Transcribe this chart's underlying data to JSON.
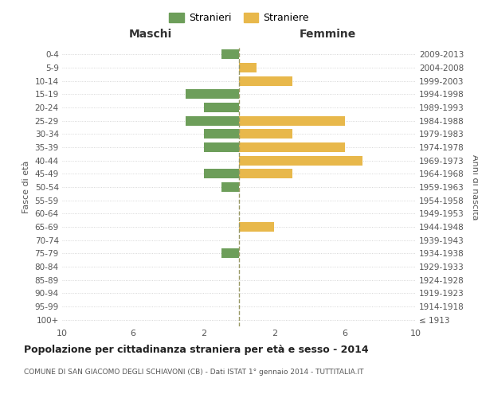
{
  "age_groups": [
    "100+",
    "95-99",
    "90-94",
    "85-89",
    "80-84",
    "75-79",
    "70-74",
    "65-69",
    "60-64",
    "55-59",
    "50-54",
    "45-49",
    "40-44",
    "35-39",
    "30-34",
    "25-29",
    "20-24",
    "15-19",
    "10-14",
    "5-9",
    "0-4"
  ],
  "birth_years": [
    "≤ 1913",
    "1914-1918",
    "1919-1923",
    "1924-1928",
    "1929-1933",
    "1934-1938",
    "1939-1943",
    "1944-1948",
    "1949-1953",
    "1954-1958",
    "1959-1963",
    "1964-1968",
    "1969-1973",
    "1974-1978",
    "1979-1983",
    "1984-1988",
    "1989-1993",
    "1994-1998",
    "1999-2003",
    "2004-2008",
    "2009-2013"
  ],
  "maschi": [
    0,
    0,
    0,
    0,
    0,
    1,
    0,
    0,
    0,
    0,
    1,
    2,
    0,
    2,
    2,
    3,
    2,
    3,
    0,
    0,
    1
  ],
  "femmine": [
    0,
    0,
    0,
    0,
    0,
    0,
    0,
    2,
    0,
    0,
    0,
    3,
    7,
    6,
    3,
    6,
    0,
    0,
    3,
    1,
    0
  ],
  "maschi_color": "#6d9e5a",
  "femmine_color": "#e8b84b",
  "dashed_line_color": "#999966",
  "grid_color": "#cccccc",
  "title_bold": "Popolazione per cittadinanza straniera per età e sesso - 2014",
  "subtitle": "COMUNE DI SAN GIACOMO DEGLI SCHIAVONI (CB) - Dati ISTAT 1° gennaio 2014 - TUTTITALIA.IT",
  "xlabel_left": "Maschi",
  "xlabel_right": "Femmine",
  "ylabel_left": "Fasce di età",
  "ylabel_right": "Anni di nascita",
  "xlim": 11,
  "legend_stranieri": "Stranieri",
  "legend_straniere": "Straniere",
  "bar_height": 0.72
}
